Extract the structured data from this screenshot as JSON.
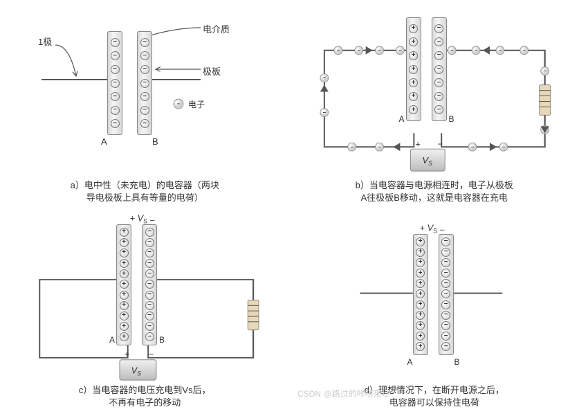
{
  "labels": {
    "dielectric": "电介质",
    "plate": "极板",
    "electron": "电子",
    "terminal": "1极",
    "A": "A",
    "B": "B",
    "Vs": "V",
    "Vs_sub": "S",
    "plus": "+",
    "minus": "−"
  },
  "captions": {
    "a1": "a）电中性（未充电）的电容器（两块",
    "a2": "导电极板上具有等量的电荷）",
    "b1": "b）当电容器与电源相连时，电子从极板",
    "b2": "A往极板B移动，这就是电容器在充电",
    "c1": "c）当电容器的电压充电到Vs后，",
    "c2": "不再有电子的移动",
    "d1": "d）理想情况下，在断开电源之后，",
    "d2": "电容器可以保持住电荷"
  },
  "style": {
    "plate_fill_a": "#d8d8d8",
    "plate_fill_b": "#f5f5f5",
    "wire_color": "#555555",
    "ball_light": "#ffffff",
    "ball_dark": "#cfcfcf",
    "vs_light": "#f0f0f0",
    "vs_dark": "#bcbcbc",
    "res_fill": "#e8d8b8",
    "text_color": "#333333",
    "watermark_color": "#cccccc",
    "font_size_caption": 13,
    "font_size_label": 13,
    "plate_width": 22,
    "charge_diameter": 13
  },
  "panel_a": {
    "plateA_charges": 7,
    "plateA_sign": "minus",
    "plateB_charges": 7,
    "plateB_sign": "minus"
  },
  "panel_b": {
    "plateA_charges": 7,
    "plateA_sign": "plus",
    "plateB_charges": 7,
    "plateB_sign": "minus",
    "loop_electrons": 16
  },
  "panel_c": {
    "plateA_charges": 11,
    "plateA_sign": "plus",
    "plateB_charges": 11,
    "plateB_sign": "minus"
  },
  "panel_d": {
    "plateA_charges": 11,
    "plateA_sign": "plus",
    "plateB_charges": 11,
    "plateB_sign": "minus"
  },
  "watermark": "CSDN @路过的咔嗒来哒"
}
